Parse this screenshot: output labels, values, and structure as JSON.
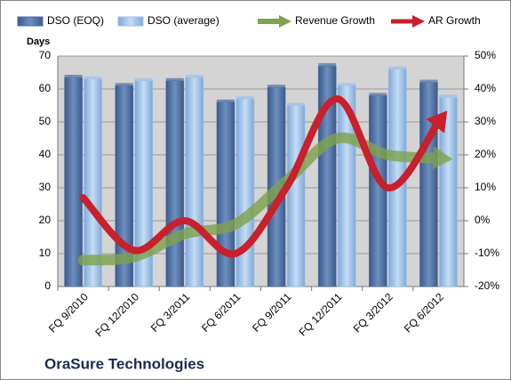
{
  "chart_data": {
    "type": "bar_line",
    "title": "OraSure Technologies",
    "y_axis_label": "Days",
    "categories": [
      "FQ 9/2010",
      "FQ 12/2010",
      "FQ 3/2011",
      "FQ 6/2011",
      "FQ 9/2011",
      "FQ 12/2011",
      "FQ 3/2012",
      "FQ 6/2012"
    ],
    "series": [
      {
        "name": "DSO (EOQ)",
        "type": "bar",
        "color": "#4f6fa3",
        "values": [
          63.5,
          61,
          62.5,
          56,
          60.5,
          67,
          58,
          62
        ]
      },
      {
        "name": "DSO (average)",
        "type": "bar",
        "color": "#9cc0e8",
        "values": [
          63,
          62.5,
          63.5,
          57,
          55,
          61,
          66,
          57.5
        ]
      },
      {
        "name": "Revenue Growth",
        "type": "line",
        "axis": "y2",
        "color": "#7fa34c",
        "values": [
          -12,
          -11,
          -4,
          -1,
          12,
          25,
          20,
          19
        ]
      },
      {
        "name": "AR Growth",
        "type": "line",
        "axis": "y2",
        "color": "#c8202c",
        "values": [
          7,
          -9,
          0,
          -10,
          10,
          37,
          10,
          30
        ]
      }
    ],
    "ylim": [
      0,
      70
    ],
    "yticks": [
      0,
      10,
      20,
      30,
      40,
      50,
      60,
      70
    ],
    "y2lim": [
      -20,
      50
    ],
    "y2ticks": [
      {
        "value": -20,
        "label": "-20%"
      },
      {
        "value": -10,
        "label": "-10%"
      },
      {
        "value": 0,
        "label": "0%"
      },
      {
        "value": 10,
        "label": "10%"
      },
      {
        "value": 20,
        "label": "20%"
      },
      {
        "value": 30,
        "label": "30%"
      },
      {
        "value": 40,
        "label": "40%"
      },
      {
        "value": 50,
        "label": "50%"
      }
    ],
    "grid": true,
    "legend": "top"
  }
}
